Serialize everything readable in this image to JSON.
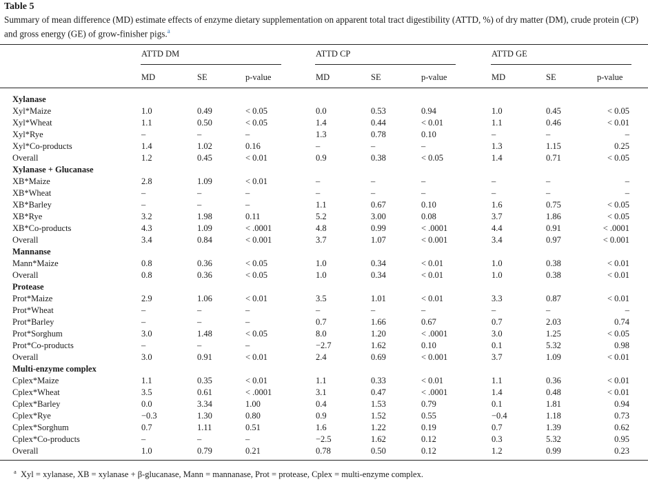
{
  "table_label": "Table 5",
  "caption": "Summary of mean difference (MD) estimate effects of enzyme dietary supplementation on apparent total tract digestibility (ATTD, %) of dry matter (DM), crude protein (CP) and gross energy (GE) of grow-finisher pigs.",
  "caption_note_marker": "a",
  "group_headers": [
    "ATTD DM",
    "ATTD CP",
    "ATTD GE"
  ],
  "sub_headers": [
    "MD",
    "SE",
    "p-value"
  ],
  "rows": [
    {
      "label": "Xylanase",
      "group": true
    },
    {
      "label": "Xyl*Maize",
      "v": [
        "1.0",
        "0.49",
        "< 0.05",
        "0.0",
        "0.53",
        "0.94",
        "1.0",
        "0.45",
        "< 0.05"
      ]
    },
    {
      "label": "Xyl*Wheat",
      "v": [
        "1.1",
        "0.50",
        "< 0.05",
        "1.4",
        "0.44",
        "< 0.01",
        "1.1",
        "0.46",
        "< 0.01"
      ]
    },
    {
      "label": "Xyl*Rye",
      "v": [
        "–",
        "–",
        "–",
        "1.3",
        "0.78",
        "0.10",
        "–",
        "–",
        "–"
      ]
    },
    {
      "label": "Xyl*Co-products",
      "v": [
        "1.4",
        "1.02",
        "0.16",
        "–",
        "–",
        "–",
        "1.3",
        "1.15",
        "0.25"
      ]
    },
    {
      "label": "Overall",
      "v": [
        "1.2",
        "0.45",
        "< 0.01",
        "0.9",
        "0.38",
        "< 0.05",
        "1.4",
        "0.71",
        "< 0.05"
      ]
    },
    {
      "label": "Xylanase + Glucanase",
      "group": true
    },
    {
      "label": "XB*Maize",
      "v": [
        "2.8",
        "1.09",
        "< 0.01",
        "–",
        "–",
        "–",
        "–",
        "–",
        "–"
      ]
    },
    {
      "label": "XB*Wheat",
      "v": [
        "–",
        "–",
        "–",
        "–",
        "–",
        "–",
        "–",
        "–",
        "–"
      ]
    },
    {
      "label": "XB*Barley",
      "v": [
        "–",
        "–",
        "–",
        "1.1",
        "0.67",
        "0.10",
        "1.6",
        "0.75",
        "< 0.05"
      ]
    },
    {
      "label": "XB*Rye",
      "v": [
        "3.2",
        "1.98",
        "0.11",
        "5.2",
        "3.00",
        "0.08",
        "3.7",
        "1.86",
        "< 0.05"
      ]
    },
    {
      "label": "XB*Co-products",
      "v": [
        "4.3",
        "1.09",
        "< .0001",
        "4.8",
        "0.99",
        "< .0001",
        "4.4",
        "0.91",
        "< .0001"
      ]
    },
    {
      "label": "Overall",
      "v": [
        "3.4",
        "0.84",
        "< 0.001",
        "3.7",
        "1.07",
        "< 0.001",
        "3.4",
        "0.97",
        "< 0.001"
      ]
    },
    {
      "label": "Mannanse",
      "group": true
    },
    {
      "label": "Mann*Maize",
      "v": [
        "0.8",
        "0.36",
        "< 0.05",
        "1.0",
        "0.34",
        "< 0.01",
        "1.0",
        "0.38",
        "< 0.01"
      ]
    },
    {
      "label": "Overall",
      "v": [
        "0.8",
        "0.36",
        "< 0.05",
        "1.0",
        "0.34",
        "< 0.01",
        "1.0",
        "0.38",
        "< 0.01"
      ]
    },
    {
      "label": "Protease",
      "group": true
    },
    {
      "label": "Prot*Maize",
      "v": [
        "2.9",
        "1.06",
        "< 0.01",
        "3.5",
        "1.01",
        "< 0.01",
        "3.3",
        "0.87",
        "< 0.01"
      ]
    },
    {
      "label": "Prot*Wheat",
      "v": [
        "–",
        "–",
        "–",
        "–",
        "–",
        "–",
        "–",
        "–",
        "–"
      ]
    },
    {
      "label": "Prot*Barley",
      "v": [
        "–",
        "–",
        "–",
        "0.7",
        "1.66",
        "0.67",
        "0.7",
        "2.03",
        "0.74"
      ]
    },
    {
      "label": "Prot*Sorghum",
      "v": [
        "3.0",
        "1.48",
        "< 0.05",
        "8.0",
        "1.20",
        "< .0001",
        "3.0",
        "1.25",
        "< 0.05"
      ]
    },
    {
      "label": "Prot*Co-products",
      "v": [
        "–",
        "–",
        "–",
        "−2.7",
        "1.62",
        "0.10",
        "0.1",
        "5.32",
        "0.98"
      ]
    },
    {
      "label": "Overall",
      "v": [
        "3.0",
        "0.91",
        "< 0.01",
        "2.4",
        "0.69",
        "< 0.001",
        "3.7",
        "1.09",
        "< 0.01"
      ]
    },
    {
      "label": "Multi-enzyme complex",
      "group": true
    },
    {
      "label": "Cplex*Maize",
      "v": [
        "1.1",
        "0.35",
        "< 0.01",
        "1.1",
        "0.33",
        "< 0.01",
        "1.1",
        "0.36",
        "< 0.01"
      ]
    },
    {
      "label": "Cplex*Wheat",
      "v": [
        "3.5",
        "0.61",
        "< .0001",
        "3.1",
        "0.47",
        "< .0001",
        "1.4",
        "0.48",
        "< 0.01"
      ]
    },
    {
      "label": "Cplex*Barley",
      "v": [
        "0.0",
        "3.34",
        "1.00",
        "0.4",
        "1.53",
        "0.79",
        "0.1",
        "1.81",
        "0.94"
      ]
    },
    {
      "label": "Cplex*Rye",
      "v": [
        "−0.3",
        "1.30",
        "0.80",
        "0.9",
        "1.52",
        "0.55",
        "−0.4",
        "1.18",
        "0.73"
      ]
    },
    {
      "label": "Cplex*Sorghum",
      "v": [
        "0.7",
        "1.11",
        "0.51",
        "1.6",
        "1.22",
        "0.19",
        "0.7",
        "1.39",
        "0.62"
      ]
    },
    {
      "label": "Cplex*Co-products",
      "v": [
        "–",
        "–",
        "–",
        "−2.5",
        "1.62",
        "0.12",
        "0.3",
        "5.32",
        "0.95"
      ]
    },
    {
      "label": "Overall",
      "v": [
        "1.0",
        "0.79",
        "0.21",
        "0.78",
        "0.50",
        "0.12",
        "1.2",
        "0.99",
        "0.23"
      ]
    }
  ],
  "footnote_marker": "a",
  "footnote": "Xyl = xylanase, XB = xylanase + β-glucanase, Mann = mannanase, Prot = protease, Cplex = multi-enzyme complex."
}
